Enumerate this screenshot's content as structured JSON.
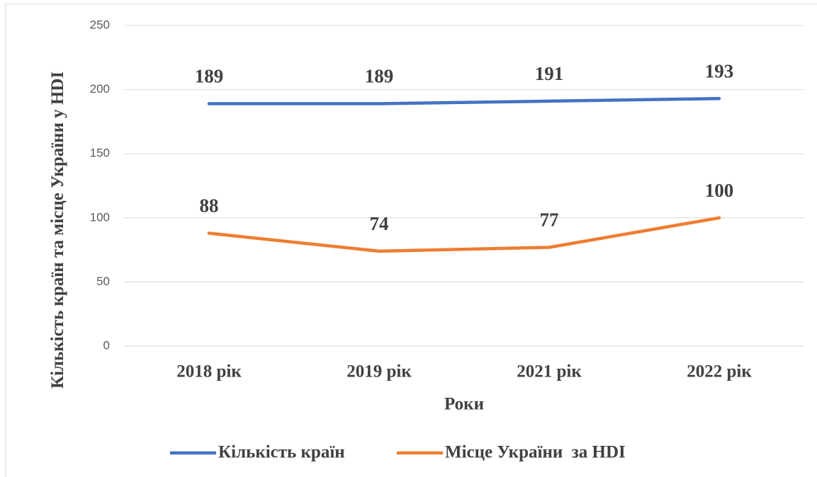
{
  "chart_data": {
    "type": "line",
    "xlabel": "Роки",
    "ylabel": "Кількість країн та місце України у HDI",
    "categories": [
      "2018 рік",
      "2019 рік",
      "2021 рік",
      "2022 рік"
    ],
    "series": [
      {
        "name": "Кількість країн",
        "color": "#4472c4",
        "values": [
          189,
          189,
          191,
          193
        ]
      },
      {
        "name": "Місце України  за HDI",
        "color": "#ed7d31",
        "values": [
          88,
          74,
          77,
          100
        ]
      }
    ],
    "ylim": [
      0,
      250
    ],
    "yticks": [
      0,
      50,
      100,
      150,
      200,
      250
    ],
    "grid": true,
    "legend": "bottom"
  }
}
